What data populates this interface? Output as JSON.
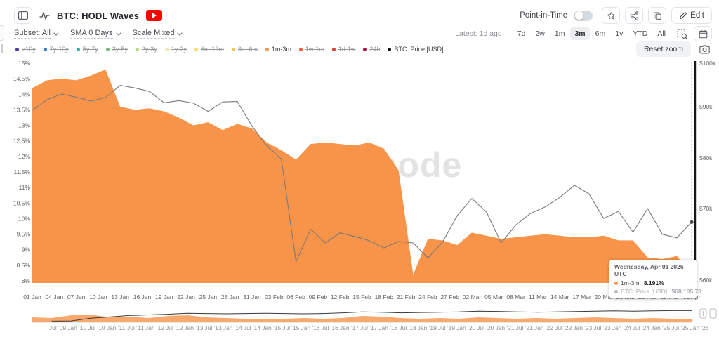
{
  "header": {
    "title": "BTC: HODL Waves",
    "point_in_time_label": "Point-in-Time",
    "edit_label": "Edit",
    "latest_label": "Latest: 1d ago",
    "dropdowns": [
      {
        "label": "Subset: All"
      },
      {
        "label": "SMA 0 Days"
      },
      {
        "label": "Scale Mixed"
      }
    ],
    "ranges": [
      "7d",
      "2w",
      "1m",
      "3m",
      "6m",
      "1y",
      "YTD",
      "All"
    ],
    "selected_range": "3m"
  },
  "legend": {
    "reset_zoom_label": "Reset zoom",
    "items": [
      {
        "label": ">10y",
        "color": "#4a3fa0",
        "active": false
      },
      {
        "label": "7y-10y",
        "color": "#2e7cd6",
        "active": false
      },
      {
        "label": "5y-7y",
        "color": "#27b5a4",
        "active": false
      },
      {
        "label": "3y-5y",
        "color": "#72c06c",
        "active": false
      },
      {
        "label": "2y-3y",
        "color": "#b6dc7d",
        "active": false
      },
      {
        "label": "1y-2y",
        "color": "#f1eda6",
        "active": false
      },
      {
        "label": "6m-12m",
        "color": "#f6de69",
        "active": false
      },
      {
        "label": "3m-6m",
        "color": "#f8c355",
        "active": false
      },
      {
        "label": "1m-3m",
        "color": "#f79449",
        "active": true
      },
      {
        "label": "1w-1m",
        "color": "#f05c3a",
        "active": false
      },
      {
        "label": "1d-1w",
        "color": "#dc3a32",
        "active": false
      },
      {
        "label": "24h",
        "color": "#a5173f",
        "active": false
      },
      {
        "label": "BTC: Price [USD]",
        "color": "#111111",
        "active": true
      }
    ]
  },
  "tooltip": {
    "title": "Wednesday, Apr 01 2026 UTC",
    "rows": [
      {
        "label": "1m-3m:",
        "value": "8.191%",
        "color": "#f79449",
        "muted": false
      },
      {
        "label": "BTC: Price [USD]:",
        "value": "$68,105.78",
        "color": "#b5b9bd",
        "muted": true
      }
    ]
  },
  "watermark": "glassnode",
  "chart_data": {
    "type": "area",
    "title": "BTC: HODL Waves",
    "legend_position": "top",
    "grid": false,
    "y_left": {
      "label": "1m-3m supply share",
      "unit": "%",
      "min": 8,
      "max": 15,
      "ticks": [
        "15%",
        "14.5%",
        "14%",
        "13.5%",
        "13%",
        "12.5%",
        "12%",
        "11.5%",
        "11%",
        "10.5%",
        "10%",
        "9.5%",
        "9%",
        "8.5%",
        "8%"
      ]
    },
    "y_right": {
      "label": "BTC Price",
      "unit": "USD",
      "min": 60000,
      "max": 100000,
      "scale": "log",
      "ticks": [
        {
          "label": "$100k",
          "k": 100
        },
        {
          "label": "$90k",
          "k": 90
        },
        {
          "label": "$80k",
          "k": 80
        },
        {
          "label": "$70k",
          "k": 70
        },
        {
          "label": "$60k",
          "k": 60
        }
      ]
    },
    "x_tick_labels": [
      "01 Jan",
      "04 Jan",
      "07 Jan",
      "10 Jan",
      "13 Jan",
      "16 Jan",
      "19 Jan",
      "22 Jan",
      "25 Jan",
      "28 Jan",
      "31 Jan",
      "03 Feb",
      "06 Feb",
      "09 Feb",
      "12 Feb",
      "15 Feb",
      "18 Feb",
      "21 Feb",
      "24 Feb",
      "27 Feb",
      "02 Mar",
      "05 Mar",
      "08 Mar",
      "11 Mar",
      "14 Mar",
      "17 Mar",
      "20 Mar",
      "23 Mar",
      "26 Mar",
      "29 Mar",
      "01 Apr"
    ],
    "dates": [
      "01 Jan",
      "03 Jan",
      "05 Jan",
      "07 Jan",
      "09 Jan",
      "11 Jan",
      "13 Jan",
      "15 Jan",
      "17 Jan",
      "19 Jan",
      "21 Jan",
      "23 Jan",
      "25 Jan",
      "27 Jan",
      "29 Jan",
      "31 Jan",
      "02 Feb",
      "04 Feb",
      "06 Feb",
      "08 Feb",
      "10 Feb",
      "12 Feb",
      "14 Feb",
      "16 Feb",
      "18 Feb",
      "20 Feb",
      "22 Feb",
      "24 Feb",
      "26 Feb",
      "28 Feb",
      "02 Mar",
      "04 Mar",
      "06 Mar",
      "08 Mar",
      "10 Mar",
      "12 Mar",
      "14 Mar",
      "16 Mar",
      "18 Mar",
      "20 Mar",
      "22 Mar",
      "24 Mar",
      "26 Mar",
      "28 Mar",
      "30 Mar",
      "01 Apr"
    ],
    "series": [
      {
        "name": "1m-3m",
        "type": "area",
        "axis": "left",
        "unit": "%",
        "color": "#f79449",
        "values": [
          14.2,
          14.45,
          14.5,
          14.45,
          14.6,
          14.8,
          13.6,
          13.5,
          13.55,
          13.45,
          13.25,
          13.0,
          13.1,
          12.85,
          13.05,
          12.9,
          12.45,
          12.2,
          11.9,
          12.4,
          12.45,
          12.4,
          12.35,
          12.45,
          12.25,
          11.55,
          8.2,
          9.35,
          9.3,
          9.15,
          9.55,
          9.45,
          9.35,
          9.4,
          9.45,
          9.5,
          9.45,
          9.4,
          9.4,
          9.45,
          9.3,
          9.3,
          8.75,
          8.7,
          8.8,
          8.191
        ]
      },
      {
        "name": "BTC: Price [USD]",
        "type": "line",
        "axis": "right",
        "unit": "USD (thousands)",
        "color": "#7a7a7a",
        "values": [
          89.3,
          91.6,
          92.9,
          92.2,
          91.3,
          92.1,
          94.9,
          94.3,
          93.5,
          90.9,
          91.4,
          90.8,
          89.1,
          91.1,
          91.2,
          86.2,
          82.4,
          79.8,
          62.6,
          67.1,
          65.2,
          66.6,
          66.1,
          65.5,
          64.5,
          65.4,
          65.2,
          63.1,
          65.3,
          69.0,
          72.0,
          69.5,
          65.2,
          67.7,
          69.3,
          70.3,
          72.2,
          74.6,
          72.9,
          68.6,
          69.6,
          66.7,
          70.0,
          66.4,
          65.9,
          68.105
        ]
      }
    ],
    "current_value_line_pct": 8.191,
    "hover": {
      "date": "Apr 01 2026",
      "pct": 8.191,
      "price_usd": 68105.78
    },
    "navigator": {
      "labels": [
        "Jul '09",
        "Jan '10",
        "Jul '10",
        "Jan '11",
        "Jul '11",
        "Jan '12",
        "Jul '12",
        "Jan '13",
        "Jul '13",
        "Jan '14",
        "Jul '14",
        "Jan '15",
        "Jul '15",
        "Jan '16",
        "Jul '16",
        "Jan '17",
        "Jul '17",
        "Jan '18",
        "Jul '18",
        "Jan '19",
        "Jul '19",
        "Jan '20",
        "Jul '20",
        "Jan '21",
        "Jul '21",
        "Jan '22",
        "Jul '22",
        "Jan '23",
        "Jul '23",
        "Jan '24",
        "Jul '24",
        "Jan '25",
        "Jul '25",
        "Jan '26"
      ],
      "hodl_fraction": [
        0.35,
        0.3,
        0.5,
        0.55,
        0.35,
        0.4,
        0.3,
        0.45,
        0.5,
        0.35,
        0.3,
        0.25,
        0.2,
        0.25,
        0.3,
        0.25,
        0.3,
        0.45,
        0.4,
        0.3,
        0.25,
        0.3,
        0.25,
        0.35,
        0.3,
        0.25,
        0.3,
        0.25,
        0.3,
        0.35,
        0.3,
        0.25,
        0.3,
        0.25,
        0.22
      ],
      "price_fraction": [
        0.02,
        0.03,
        0.05,
        0.25,
        0.35,
        0.45,
        0.5,
        0.55,
        0.62,
        0.6,
        0.58,
        0.6,
        0.62,
        0.6,
        0.58,
        0.6,
        0.65,
        0.72,
        0.7,
        0.65,
        0.68,
        0.7,
        0.72,
        0.78,
        0.76,
        0.72,
        0.7,
        0.72,
        0.75,
        0.78,
        0.8,
        0.78,
        0.8,
        0.82,
        0.82
      ]
    }
  }
}
